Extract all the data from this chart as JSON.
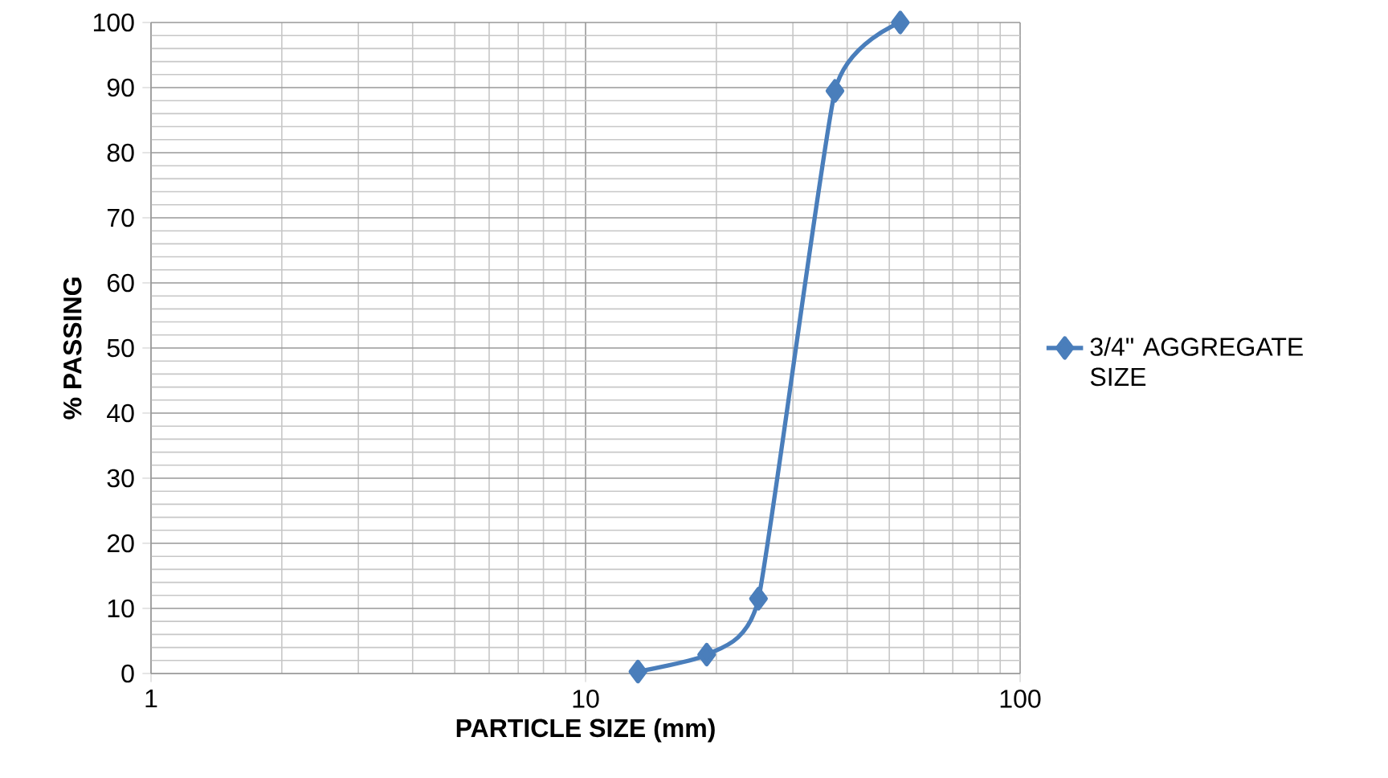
{
  "chart_data": {
    "type": "line",
    "xlabel": "PARTICLE SIZE (mm)",
    "ylabel": "% PASSING",
    "x": [
      13.2,
      19,
      25,
      37.5,
      53
    ],
    "series": [
      {
        "name": "3/4\" AGGREGATE SIZE",
        "color": "#4a7ebb",
        "values": [
          0.3,
          2.9,
          11.5,
          89.5,
          100
        ]
      }
    ],
    "log": "x",
    "xlim": [
      1,
      100
    ],
    "xticks": [
      1,
      10,
      100
    ],
    "ylim": [
      0,
      100
    ],
    "yticks": [
      0,
      10,
      20,
      30,
      40,
      50,
      60,
      70,
      80,
      90,
      100
    ],
    "grid": true,
    "legend": "right",
    "marker": "diamond",
    "line_style": "solid"
  }
}
